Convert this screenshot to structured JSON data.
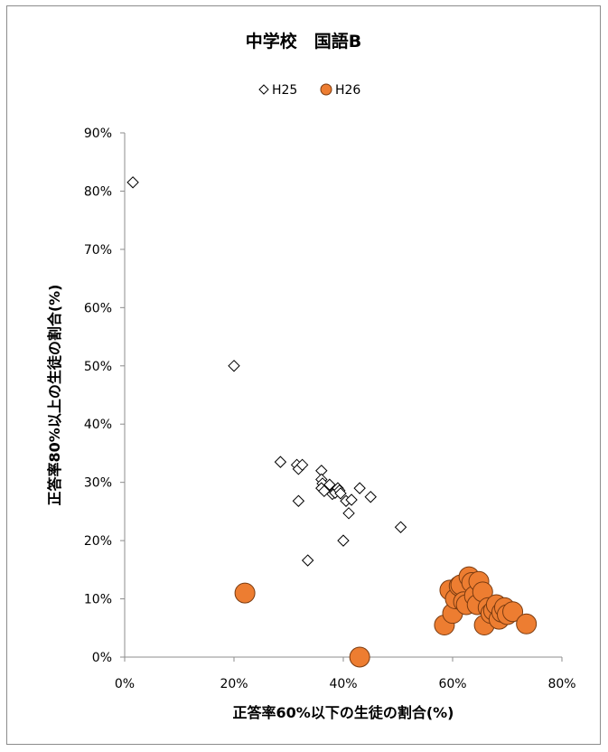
{
  "chart_data": {
    "type": "scatter",
    "title": "中学校　国語B",
    "xlabel": "正答率60%以下の生徒の割合(%)",
    "ylabel": "正答率80%以上の生徒の割合(%)",
    "xlim": [
      0,
      0.8
    ],
    "ylim": [
      0,
      0.9
    ],
    "x_ticks": [
      0,
      0.2,
      0.4,
      0.6,
      0.8
    ],
    "x_tick_labels": [
      "0%",
      "20%",
      "40%",
      "60%",
      "80%"
    ],
    "y_ticks": [
      0,
      0.1,
      0.2,
      0.3,
      0.4,
      0.5,
      0.6,
      0.7,
      0.8,
      0.9
    ],
    "y_tick_labels": [
      "0%",
      "10%",
      "20%",
      "30%",
      "40%",
      "50%",
      "60%",
      "70%",
      "80%",
      "90%"
    ],
    "grid": false,
    "legend": "top-center",
    "series": [
      {
        "name": "H25",
        "marker": "diamond-open",
        "color": "#000000",
        "points": [
          [
            0.015,
            0.815
          ],
          [
            0.2,
            0.5
          ],
          [
            0.285,
            0.335
          ],
          [
            0.315,
            0.33
          ],
          [
            0.318,
            0.323
          ],
          [
            0.325,
            0.33
          ],
          [
            0.318,
            0.268
          ],
          [
            0.335,
            0.166
          ],
          [
            0.36,
            0.32
          ],
          [
            0.36,
            0.305
          ],
          [
            0.362,
            0.298
          ],
          [
            0.36,
            0.29
          ],
          [
            0.365,
            0.285
          ],
          [
            0.375,
            0.296
          ],
          [
            0.38,
            0.28
          ],
          [
            0.385,
            0.282
          ],
          [
            0.39,
            0.29
          ],
          [
            0.393,
            0.286
          ],
          [
            0.395,
            0.281
          ],
          [
            0.4,
            0.2
          ],
          [
            0.405,
            0.268
          ],
          [
            0.41,
            0.247
          ],
          [
            0.415,
            0.27
          ],
          [
            0.43,
            0.29
          ],
          [
            0.45,
            0.275
          ],
          [
            0.505,
            0.223
          ]
        ]
      },
      {
        "name": "H26",
        "marker": "circle-filled",
        "color": "#ED7D31",
        "points": [
          [
            0.22,
            0.11
          ],
          [
            0.43,
            0.0
          ],
          [
            0.585,
            0.055
          ],
          [
            0.595,
            0.115
          ],
          [
            0.6,
            0.075
          ],
          [
            0.605,
            0.1
          ],
          [
            0.612,
            0.122
          ],
          [
            0.615,
            0.124
          ],
          [
            0.62,
            0.095
          ],
          [
            0.625,
            0.09
          ],
          [
            0.63,
            0.138
          ],
          [
            0.635,
            0.128
          ],
          [
            0.64,
            0.105
          ],
          [
            0.645,
            0.09
          ],
          [
            0.648,
            0.13
          ],
          [
            0.655,
            0.112
          ],
          [
            0.658,
            0.055
          ],
          [
            0.665,
            0.085
          ],
          [
            0.67,
            0.075
          ],
          [
            0.675,
            0.08
          ],
          [
            0.68,
            0.09
          ],
          [
            0.685,
            0.065
          ],
          [
            0.69,
            0.077
          ],
          [
            0.695,
            0.085
          ],
          [
            0.7,
            0.073
          ],
          [
            0.71,
            0.078
          ],
          [
            0.735,
            0.057
          ]
        ]
      }
    ]
  }
}
